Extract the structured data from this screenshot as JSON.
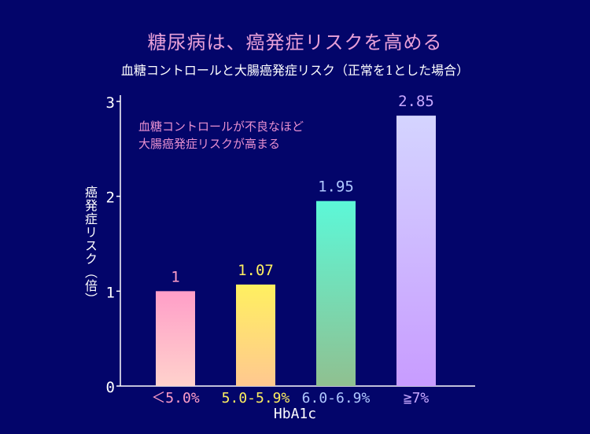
{
  "chart_data": {
    "type": "bar",
    "title": "糖尿病は、癌発症リスクを高める",
    "subtitle": "血糖コントロールと大腸癌発症リスク（正常を1とした場合）",
    "annotation": [
      "血糖コントロールが不良なほど",
      "大腸癌発症リスクが高まる"
    ],
    "xlabel": "HbA1c",
    "ylabel": "癌発症リスク（倍）",
    "categories": [
      "＜5.0%",
      "5.0-5.9%",
      "6.0-6.9%",
      "≧7%"
    ],
    "values": [
      1,
      1.07,
      1.95,
      2.85
    ],
    "value_labels": [
      "1",
      "1.07",
      "1.95",
      "2.85"
    ],
    "ylim": [
      0,
      3
    ],
    "yticks": [
      0,
      1,
      2,
      3
    ],
    "grid": false,
    "colors": {
      "background": "#03056a",
      "bar_gradients": [
        [
          "#ff9ec8",
          "#ffd2cc"
        ],
        [
          "#fff060",
          "#ffc890"
        ],
        [
          "#5cf8d8",
          "#90c090"
        ],
        [
          "#d4d4ff",
          "#c89cff"
        ]
      ],
      "category_label_colors": [
        "#ff9ec8",
        "#fff060",
        "#b0c8ff",
        "#c8a8ff"
      ],
      "value_label_colors": [
        "#ff9ec8",
        "#fff060",
        "#b0c8ff",
        "#c8a8ff"
      ]
    }
  }
}
